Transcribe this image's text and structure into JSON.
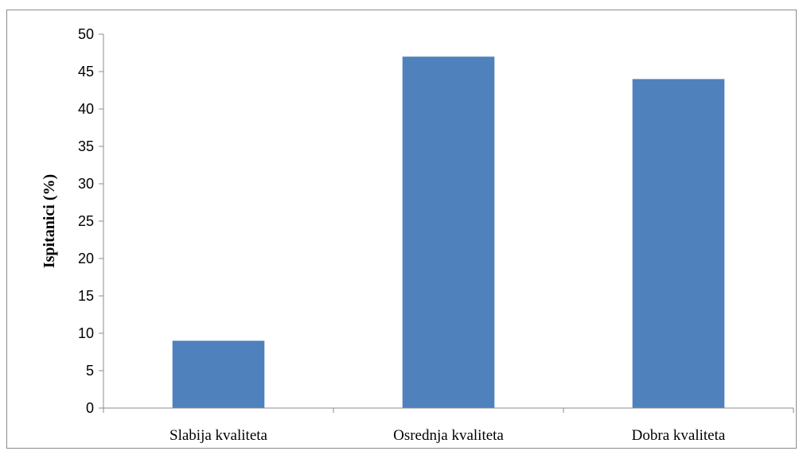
{
  "chart_data": {
    "type": "bar",
    "categories": [
      "Slabija kvaliteta",
      "Osrednja kvaliteta",
      "Dobra kvaliteta"
    ],
    "values": [
      9,
      47,
      44
    ],
    "title": "",
    "xlabel": "",
    "ylabel": "Ispitanici (%)",
    "ylim": [
      0,
      50
    ],
    "yticks": [
      "0",
      "5",
      "10",
      "15",
      "20",
      "25",
      "30",
      "35",
      "40",
      "45",
      "50"
    ],
    "grid": false,
    "legend": "none",
    "bar_color": "#4f81bd",
    "axis_color": "#8c8c8c"
  }
}
